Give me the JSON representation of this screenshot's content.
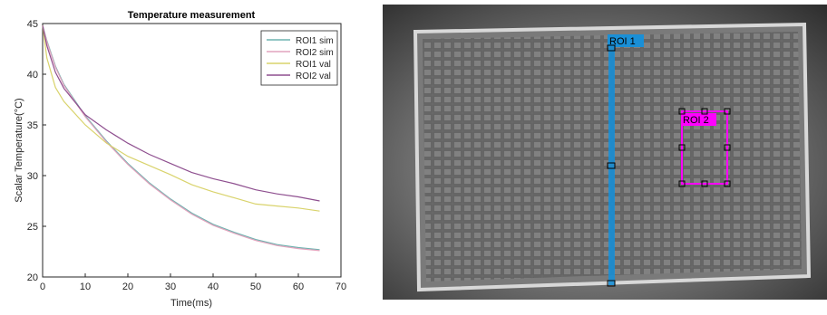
{
  "chart_data": {
    "type": "line",
    "title": "Temperature measurement",
    "xlabel": "Time(ms)",
    "ylabel": "Scalar Temperature(°C)",
    "xlim": [
      0,
      70
    ],
    "ylim": [
      20,
      45
    ],
    "xticks": [
      0,
      10,
      20,
      30,
      40,
      50,
      60,
      70
    ],
    "yticks": [
      20,
      25,
      30,
      35,
      40,
      45
    ],
    "grid": false,
    "legend_position": "top-right",
    "x": [
      0,
      1,
      3,
      5,
      10,
      15,
      20,
      25,
      30,
      35,
      40,
      45,
      50,
      55,
      60,
      65
    ],
    "series": [
      {
        "name": "ROI1 sim",
        "color": "#6fb3b0",
        "values": [
          44.8,
          43.3,
          40.8,
          39.0,
          35.9,
          33.4,
          31.2,
          29.3,
          27.7,
          26.3,
          25.2,
          24.4,
          23.7,
          23.2,
          22.9,
          22.7
        ]
      },
      {
        "name": "ROI2 sim",
        "color": "#e2a3bd",
        "values": [
          44.8,
          43.2,
          40.7,
          38.9,
          35.8,
          33.3,
          31.1,
          29.2,
          27.6,
          26.2,
          25.1,
          24.3,
          23.6,
          23.1,
          22.8,
          22.6
        ]
      },
      {
        "name": "ROI1 val",
        "color": "#d9d36c",
        "values": [
          44.8,
          41.6,
          38.7,
          37.3,
          35.0,
          33.2,
          31.9,
          31.0,
          30.1,
          29.1,
          28.4,
          27.8,
          27.2,
          27.0,
          26.8,
          26.5
        ]
      },
      {
        "name": "ROI2 val",
        "color": "#8e4f8f",
        "values": [
          44.8,
          42.8,
          40.2,
          38.6,
          36.0,
          34.5,
          33.2,
          32.1,
          31.2,
          30.3,
          29.7,
          29.2,
          28.6,
          28.2,
          27.9,
          27.5
        ]
      }
    ]
  },
  "image": {
    "roi1_label": "ROI 1",
    "roi2_label": "ROI 2",
    "roi1_color": "#1a8fd6",
    "roi2_color": "#ff00ff"
  }
}
